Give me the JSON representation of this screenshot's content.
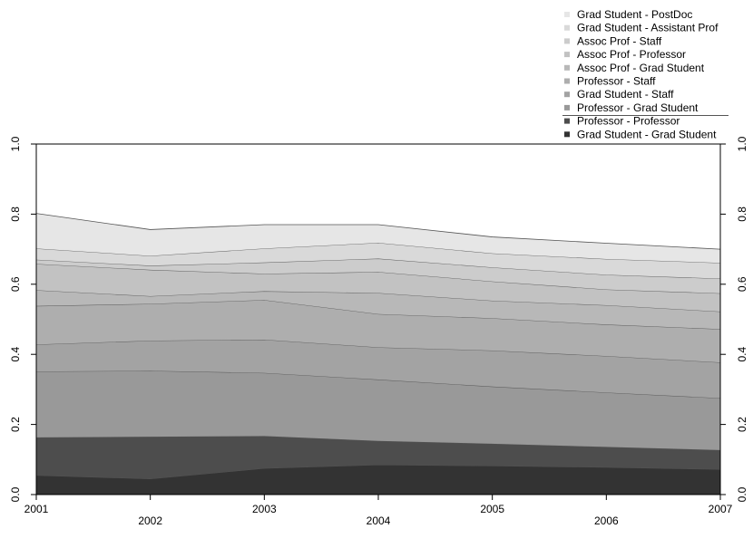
{
  "chart_data": {
    "type": "area",
    "stacked": true,
    "title": "",
    "xlabel": "",
    "ylabel": "",
    "x": [
      2001,
      2002,
      2003,
      2004,
      2005,
      2006,
      2007
    ],
    "x_tick_labels": [
      "2001",
      "2002",
      "2003",
      "2004",
      "2005",
      "2006",
      "2007"
    ],
    "ylim": [
      0,
      1
    ],
    "y_ticks": [
      0,
      0.2,
      0.4,
      0.6,
      0.8,
      1
    ],
    "y_tick_labels": [
      "0.0",
      "0.2",
      "0.4",
      "0.6",
      "0.8",
      "1.0"
    ],
    "grid": false,
    "legend_position": "top-right",
    "series": [
      {
        "name": "Grad Student - Grad Student",
        "color": "#333333",
        "values": [
          0.055,
          0.045,
          0.075,
          0.085,
          0.082,
          0.078,
          0.072
        ]
      },
      {
        "name": "Professor - Professor",
        "color": "#4d4d4d",
        "values": [
          0.108,
          0.12,
          0.092,
          0.068,
          0.063,
          0.058,
          0.055
        ]
      },
      {
        "name": "Professor - Grad Student",
        "color": "#999999",
        "values": [
          0.188,
          0.188,
          0.18,
          0.175,
          0.163,
          0.155,
          0.148
        ]
      },
      {
        "name": "Grad Student - Staff",
        "color": "#a3a3a3",
        "values": [
          0.077,
          0.086,
          0.095,
          0.092,
          0.103,
          0.104,
          0.102
        ]
      },
      {
        "name": "Professor - Staff",
        "color": "#aeaeae",
        "values": [
          0.11,
          0.105,
          0.113,
          0.095,
          0.092,
          0.09,
          0.095
        ]
      },
      {
        "name": "Assoc Prof - Grad Student",
        "color": "#b8b8b8",
        "values": [
          0.045,
          0.022,
          0.025,
          0.06,
          0.05,
          0.055,
          0.05
        ]
      },
      {
        "name": "Assoc Prof - Professor",
        "color": "#c2c2c2",
        "values": [
          0.075,
          0.075,
          0.05,
          0.06,
          0.055,
          0.045,
          0.052
        ]
      },
      {
        "name": "Assoc Prof - Staff",
        "color": "#cccccc",
        "values": [
          0.012,
          0.012,
          0.032,
          0.038,
          0.04,
          0.042,
          0.042
        ]
      },
      {
        "name": "Grad Student - Assistant Prof",
        "color": "#d9d9d9",
        "values": [
          0.032,
          0.028,
          0.04,
          0.045,
          0.04,
          0.045,
          0.045
        ]
      },
      {
        "name": "Grad Student - PostDoc",
        "color": "#e6e6e6",
        "values": [
          0.1,
          0.075,
          0.068,
          0.052,
          0.047,
          0.045,
          0.039
        ]
      }
    ]
  }
}
